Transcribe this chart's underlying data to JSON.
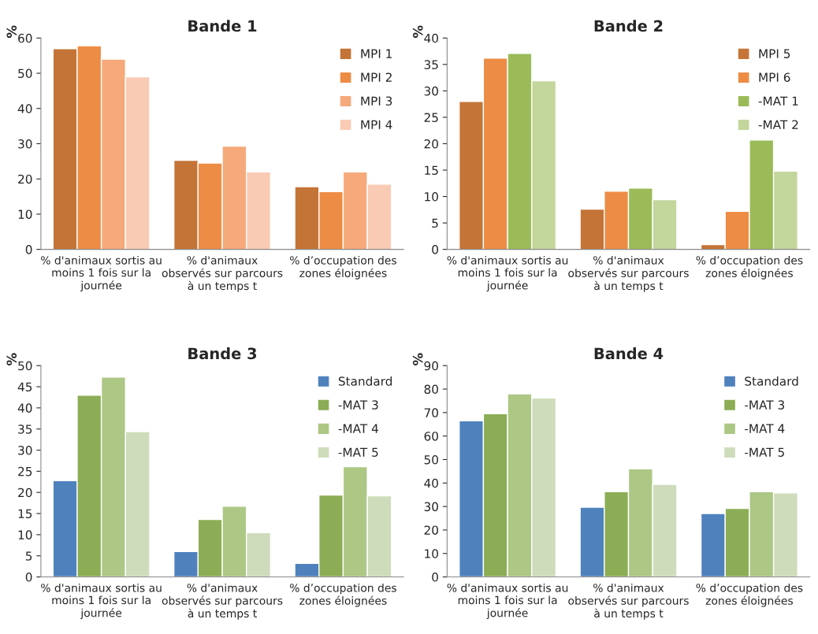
{
  "chart_data": [
    {
      "type": "bar",
      "title": "Bande 1",
      "ylabel": "%",
      "categories": [
        "% d'animaux sortis au\nmoins 1 fois sur la\njournée",
        "% d'animaux\nobservés sur parcours\nà un temps t",
        "% d’occupation des\nzones éloignées"
      ],
      "ylim": [
        0,
        60
      ],
      "yticks": [
        0,
        10,
        20,
        30,
        40,
        50,
        60
      ],
      "grid": false,
      "legend": "top right",
      "series": [
        {
          "name": "MPI 1",
          "color": "#c47436",
          "values": [
            57,
            25.3,
            17.8
          ]
        },
        {
          "name": "MPI 2",
          "color": "#ed8c44",
          "values": [
            57.8,
            24.5,
            16.4
          ]
        },
        {
          "name": "MPI 3",
          "color": "#f6a97a",
          "values": [
            54,
            29.3,
            22
          ]
        },
        {
          "name": "MPI 4",
          "color": "#f9cbb4",
          "values": [
            49,
            22,
            18.5
          ]
        }
      ]
    },
    {
      "type": "bar",
      "title": "Bande 2",
      "ylabel": "%",
      "categories": [
        "% d'animaux sortis au\nmoins 1 fois sur la\njournée",
        "% d'animaux\nobservés sur parcours\nà un temps t",
        "% d’occupation des\nzones éloignées"
      ],
      "ylim": [
        0,
        40
      ],
      "yticks": [
        0,
        5,
        10,
        15,
        20,
        25,
        30,
        35,
        40
      ],
      "grid": false,
      "legend": "top right",
      "series": [
        {
          "name": "MPI 5",
          "color": "#c47436",
          "values": [
            28,
            7.6,
            0.9
          ]
        },
        {
          "name": "MPI 6",
          "color": "#ed8c44",
          "values": [
            36.2,
            11,
            7.2
          ]
        },
        {
          "name": "-MAT 1",
          "color": "#9bbb59",
          "values": [
            37.1,
            11.6,
            20.7
          ]
        },
        {
          "name": "-MAT 2",
          "color": "#c3d69b",
          "values": [
            31.9,
            9.4,
            14.8
          ]
        }
      ]
    },
    {
      "type": "bar",
      "title": "Bande 3",
      "ylabel": "%",
      "categories": [
        "% d'animaux sortis au\nmoins 1 fois sur la\njournée",
        "% d'animaux\nobservés sur parcours\nà un temps t",
        "% d’occupation des\nzones éloignées"
      ],
      "ylim": [
        0,
        50
      ],
      "yticks": [
        0,
        5,
        10,
        15,
        20,
        25,
        30,
        35,
        40,
        45,
        50
      ],
      "grid": false,
      "legend": "top right",
      "series": [
        {
          "name": "Standard",
          "color": "#4f81bd",
          "values": [
            22.8,
            6,
            3.2
          ]
        },
        {
          "name": "-MAT 3",
          "color": "#8cad55",
          "values": [
            43,
            13.6,
            19.4
          ]
        },
        {
          "name": "-MAT 4",
          "color": "#adc785",
          "values": [
            47.3,
            16.7,
            26.1
          ]
        },
        {
          "name": "-MAT 5",
          "color": "#cfdcbb",
          "values": [
            34.4,
            10.5,
            19.2
          ]
        }
      ]
    },
    {
      "type": "bar",
      "title": "Bande 4",
      "ylabel": "%",
      "categories": [
        "% d'animaux sortis au\nmoins 1 fois sur la\njournée",
        "% d'animaux\nobservés sur parcours\nà un temps t",
        "% d’occupation des\nzones éloignées"
      ],
      "ylim": [
        0,
        90
      ],
      "yticks": [
        0,
        10,
        20,
        30,
        40,
        50,
        60,
        70,
        80,
        90
      ],
      "grid": false,
      "legend": "top right",
      "series": [
        {
          "name": "Standard",
          "color": "#4f81bd",
          "values": [
            66.5,
            29.7,
            27
          ]
        },
        {
          "name": "-MAT 3",
          "color": "#8cad55",
          "values": [
            69.5,
            36.3,
            29.2
          ]
        },
        {
          "name": "-MAT 4",
          "color": "#adc785",
          "values": [
            78,
            46,
            36.3
          ]
        },
        {
          "name": "-MAT 5",
          "color": "#cfdcbb",
          "values": [
            76.2,
            39.4,
            35.8
          ]
        }
      ]
    }
  ]
}
